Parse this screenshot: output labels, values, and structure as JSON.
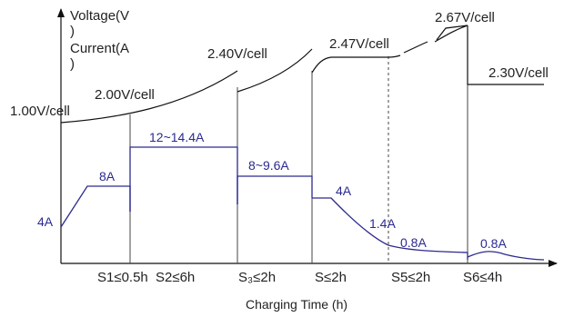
{
  "chart_data": {
    "type": "line",
    "title": "",
    "y_axis_label_voltage": [
      "Voltage(V",
      ")"
    ],
    "y_axis_label_current": [
      "Current(A",
      ")"
    ],
    "xlabel": "Charging Time (h)",
    "colors": {
      "voltage": "#111111",
      "current": "#2b2a8f",
      "divider": "#444444"
    },
    "stages": [
      {
        "label": "S1≤0.5h"
      },
      {
        "label": "S2≤6h"
      },
      {
        "label": "S3≤2h",
        "printed": "S₃≤2h"
      },
      {
        "label": "S≤2h"
      },
      {
        "label": "S5≤2h"
      },
      {
        "label": "S6≤4h"
      }
    ],
    "voltage_labels": [
      "1.00V/cell",
      "2.00V/cell",
      "2.40V/cell",
      "2.47V/cell",
      "2.67V/cell",
      "2.30V/cell"
    ],
    "current_labels": [
      "4A",
      "8A",
      "12~14.4A",
      "8~9.6A",
      "4A",
      "1.4A",
      "0.8A",
      "0.8A"
    ],
    "series": [
      {
        "name": "Voltage",
        "unit": "V/cell"
      },
      {
        "name": "Current",
        "unit": "A"
      }
    ]
  }
}
